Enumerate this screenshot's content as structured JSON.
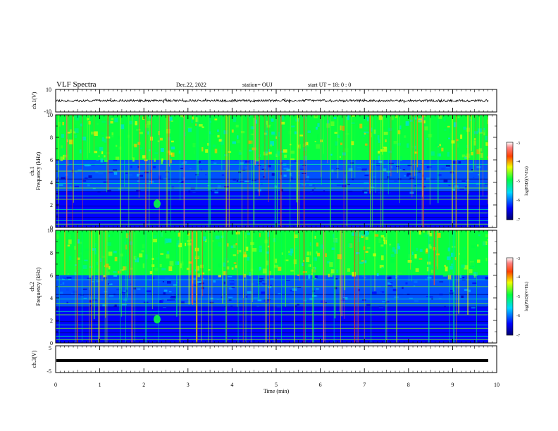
{
  "header": {
    "title": "VLF Spectra",
    "date": "Dec.22, 2022",
    "station": "station= OUJ",
    "start": "start  UT =   18: 0  : 0"
  },
  "chart_data": [
    {
      "type": "line",
      "panel": "ch1-waveform",
      "ylabel": "ch.1(V)",
      "ylim": [
        -10,
        10
      ],
      "y_ticks": [
        "10",
        "-10"
      ],
      "xlim": [
        0,
        10
      ],
      "baseline": 0,
      "noise_amplitude": 1.0,
      "spikes": [
        {
          "x": 1.25,
          "y": 2.5
        },
        {
          "x": 2.45,
          "y": -2.0
        },
        {
          "x": 2.5,
          "y": 2.3
        },
        {
          "x": 2.88,
          "y": 2.0
        },
        {
          "x": 3.4,
          "y": 2.0
        },
        {
          "x": 5.2,
          "y": 2.2
        },
        {
          "x": 5.3,
          "y": -2.0
        },
        {
          "x": 7.0,
          "y": 1.8
        },
        {
          "x": 7.9,
          "y": -2.0
        }
      ]
    },
    {
      "type": "heatmap",
      "panel": "ch1-spectrogram",
      "ylabel_line1": "ch.1",
      "ylabel_line2": "Frequency  (kHz)",
      "y_ticks": [
        "0",
        "2",
        "4",
        "6",
        "8",
        "10"
      ],
      "ylim": [
        0,
        10
      ],
      "xlim": [
        0,
        10
      ],
      "colorbar_label": "log(PSD)(V²/Hz)",
      "colorbar_ticks": [
        "-3",
        "-4",
        "-5",
        "-6",
        "-7"
      ],
      "colorbar_range": [
        -7,
        -3
      ],
      "bands_khz": [
        {
          "from": 6.0,
          "to": 10.0,
          "level": -4.9
        },
        {
          "from": 3.2,
          "to": 6.0,
          "level": -6.1
        },
        {
          "from": 0.0,
          "to": 3.2,
          "level": -6.4
        }
      ],
      "hiss_shift_time_min": 6.8,
      "hiss_low_edge_after_khz": 5.2,
      "blob": {
        "time": 2.3,
        "freq": 2.1,
        "level": -4.9
      }
    },
    {
      "type": "heatmap",
      "panel": "ch2-spectrogram",
      "ylabel_line1": "ch.2",
      "ylabel_line2": "Frequency  (kHz)",
      "y_ticks": [
        "0",
        "2",
        "4",
        "6",
        "8",
        "10"
      ],
      "ylim": [
        0,
        10
      ],
      "xlim": [
        0,
        10
      ],
      "colorbar_label": "log(PSD)(V²/Hz)",
      "colorbar_ticks": [
        "-3",
        "-4",
        "-5",
        "-6",
        "-7"
      ],
      "colorbar_range": [
        -7,
        -3
      ],
      "bands_khz": [
        {
          "from": 6.0,
          "to": 10.0,
          "level": -4.9
        },
        {
          "from": 3.2,
          "to": 6.0,
          "level": -6.1
        },
        {
          "from": 0.0,
          "to": 3.2,
          "level": -6.4
        }
      ],
      "hiss_shift_time_min": 6.8,
      "hiss_low_edge_after_khz": 5.2,
      "blob": {
        "time": 2.3,
        "freq": 2.1,
        "level": -4.9
      }
    },
    {
      "type": "line",
      "panel": "ch3-waveform",
      "ylabel": "ch.3(V)",
      "ylim": [
        -5,
        5
      ],
      "y_ticks": [
        "5",
        "-5"
      ],
      "xlim": [
        0,
        10
      ],
      "baseline": 0
    }
  ],
  "xaxis": {
    "label": "Time  (min)",
    "ticks": [
      "0",
      "1",
      "2",
      "3",
      "4",
      "5",
      "6",
      "7",
      "8",
      "9",
      "10"
    ],
    "range": [
      0,
      10
    ]
  }
}
